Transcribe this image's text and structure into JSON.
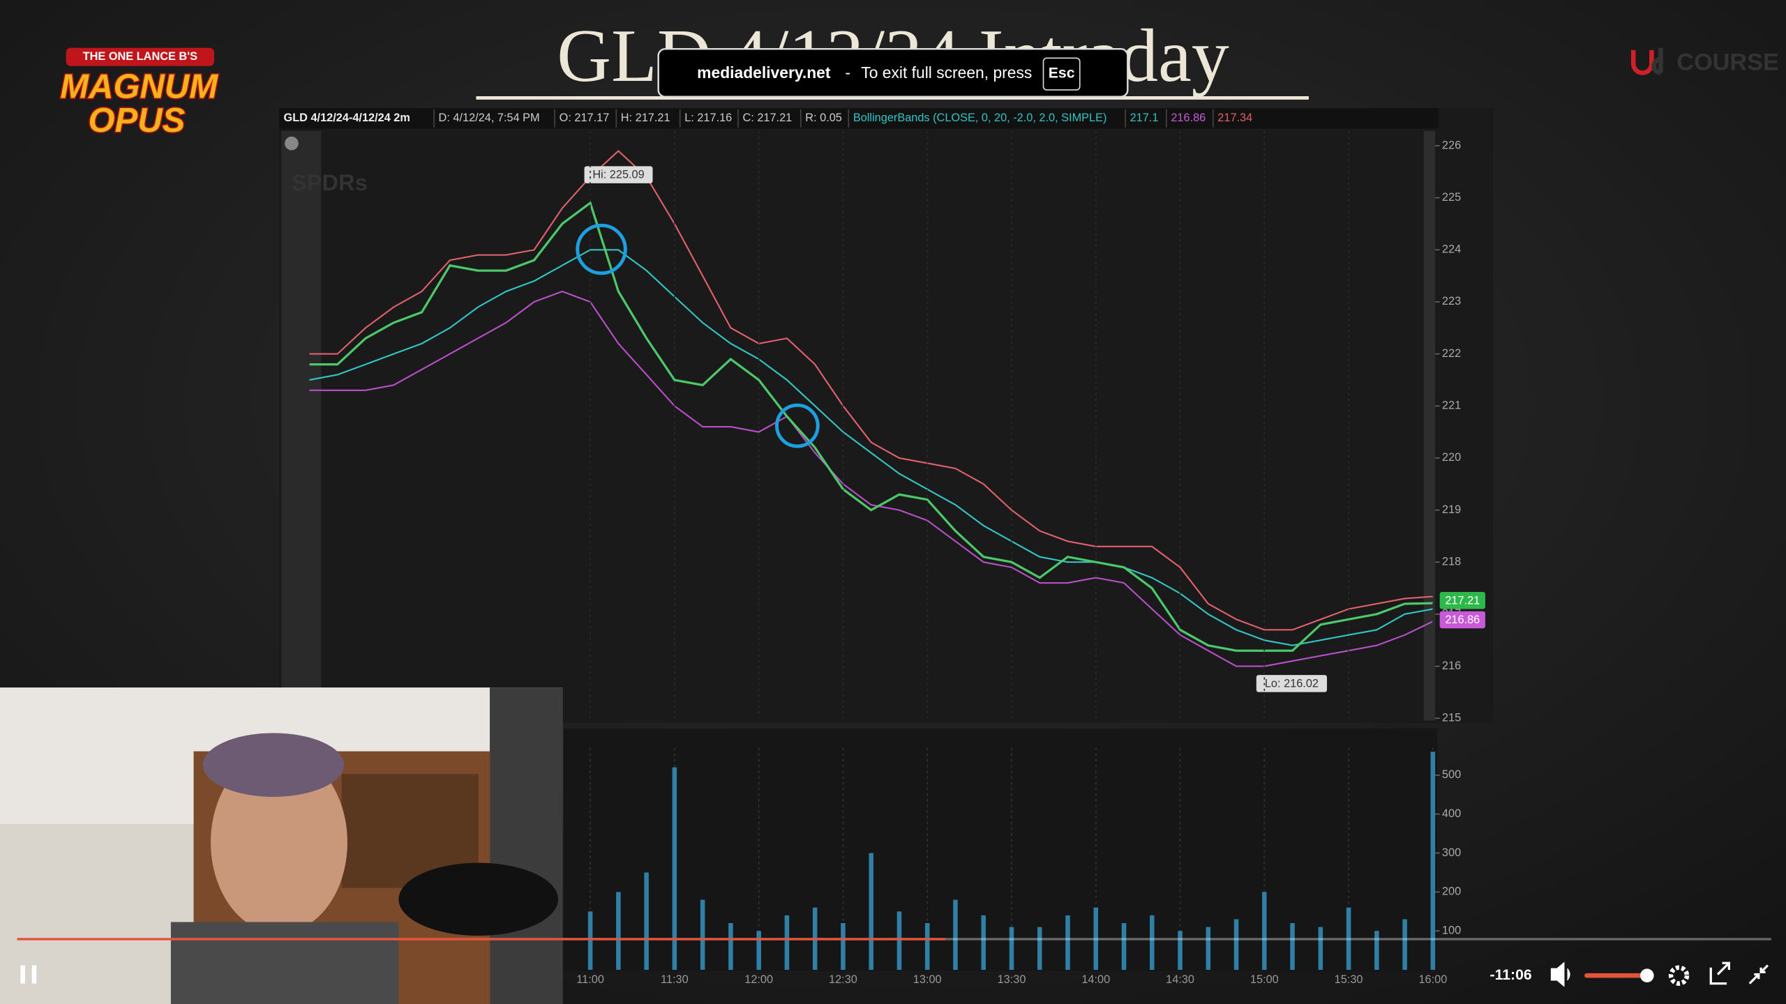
{
  "video": {
    "title": "GLD 4/12/24 Intraday",
    "logo_top": "THE ONE LANCE B'S",
    "logo_line1": "MAGNUM",
    "logo_line2": "OPUS",
    "brand": "COURSE",
    "time_remaining": "-11:06"
  },
  "fullscreen_notice": {
    "site": "mediadelivery.net",
    "separator": "-",
    "message": "To exit full screen, press",
    "key": "Esc"
  },
  "chart_header": [
    "GLD 4/12/24-4/12/24 2m",
    "D: 4/12/24, 7:54 PM",
    "O: 217.17",
    "H: 217.21",
    "L: 217.16",
    "C: 217.21",
    "R: 0.05",
    "BollingerBands (CLOSE, 0, 20, -2.0, 2.0, SIMPLE)",
    "217.1",
    "216.86",
    "217.34"
  ],
  "chart_data": [
    {
      "type": "line",
      "annotations": [
        "Hi: 225.09",
        "Lo: 216.02",
        "217.21",
        "216.86"
      ],
      "watermark": "SPDRs",
      "x": [
        560,
        570,
        580,
        590,
        600,
        610,
        620,
        630,
        640,
        650,
        660,
        670,
        680,
        690,
        700,
        710,
        720,
        730,
        740,
        750,
        760,
        770,
        780,
        790,
        800,
        810,
        820,
        830,
        840,
        850,
        860,
        870,
        880,
        890,
        900,
        910,
        920,
        930,
        940,
        950,
        960
      ],
      "xlim": [
        550,
        960
      ],
      "ylim": [
        215,
        226
      ],
      "yticks": [
        215,
        216,
        217,
        218,
        219,
        220,
        221,
        222,
        223,
        224,
        225,
        226
      ],
      "series": [
        {
          "color": "#e0606e",
          "values": [
            222.0,
            222.0,
            222.5,
            222.9,
            223.2,
            223.8,
            223.9,
            223.9,
            224.0,
            224.8,
            225.4,
            225.9,
            225.4,
            224.5,
            223.5,
            222.5,
            222.2,
            222.3,
            221.8,
            221.0,
            220.3,
            220.0,
            219.9,
            219.8,
            219.5,
            219.0,
            218.6,
            218.4,
            218.3,
            218.3,
            218.3,
            217.9,
            217.2,
            216.9,
            216.7,
            216.7,
            216.9,
            217.1,
            217.2,
            217.3,
            217.34
          ]
        },
        {
          "color": "#b84fc8",
          "values": [
            221.3,
            221.3,
            221.3,
            221.4,
            221.7,
            222.0,
            222.3,
            222.6,
            223.0,
            223.2,
            223.0,
            222.2,
            221.6,
            221.0,
            220.6,
            220.6,
            220.5,
            220.8,
            220.1,
            219.5,
            219.1,
            219.0,
            218.8,
            218.4,
            218.0,
            217.9,
            217.6,
            217.6,
            217.7,
            217.6,
            217.1,
            216.6,
            216.3,
            216.0,
            216.0,
            216.1,
            216.2,
            216.3,
            216.4,
            216.6,
            216.86
          ]
        },
        {
          "color": "#33c4c4",
          "values": [
            221.5,
            221.6,
            221.8,
            222.0,
            222.2,
            222.5,
            222.9,
            223.2,
            223.4,
            223.7,
            224.0,
            224.0,
            223.6,
            223.1,
            222.6,
            222.2,
            221.9,
            221.5,
            221.0,
            220.5,
            220.1,
            219.7,
            219.4,
            219.1,
            218.7,
            218.4,
            218.1,
            218.0,
            218.0,
            217.9,
            217.7,
            217.4,
            217.0,
            216.7,
            216.5,
            216.4,
            216.5,
            216.6,
            216.7,
            217.0,
            217.1
          ]
        },
        {
          "color": "#4cc76a",
          "values": [
            221.8,
            221.8,
            222.3,
            222.6,
            222.8,
            223.7,
            223.6,
            223.6,
            223.8,
            224.5,
            224.9,
            223.2,
            222.3,
            221.5,
            221.4,
            221.9,
            221.5,
            220.8,
            220.2,
            219.4,
            219.0,
            219.3,
            219.2,
            218.6,
            218.1,
            218.0,
            217.7,
            218.1,
            218.0,
            217.9,
            217.5,
            216.7,
            216.4,
            216.3,
            216.3,
            216.3,
            216.8,
            216.9,
            217.0,
            217.2,
            217.21
          ]
        }
      ]
    },
    {
      "type": "bar",
      "x": [
        660,
        670,
        680,
        690,
        700,
        710,
        720,
        730,
        740,
        750,
        760,
        770,
        780,
        790,
        800,
        810,
        820,
        830,
        840,
        850,
        860,
        870,
        880,
        890,
        900,
        910,
        920,
        930,
        940,
        950,
        960
      ],
      "values": [
        150,
        200,
        250,
        520,
        180,
        120,
        100,
        140,
        160,
        120,
        300,
        150,
        120,
        180,
        140,
        110,
        110,
        140,
        160,
        120,
        140,
        100,
        110,
        130,
        200,
        120,
        110,
        160,
        100,
        130,
        560
      ],
      "color": "#2f7fa6",
      "xlim": [
        550,
        960
      ],
      "ylim": [
        0,
        570
      ],
      "yticks": [
        100,
        200,
        300,
        400,
        500
      ],
      "xticks": [
        {
          "value": 660,
          "label": "11:00"
        },
        {
          "value": 690,
          "label": "11:30"
        },
        {
          "value": 720,
          "label": "12:00"
        },
        {
          "value": 750,
          "label": "12:30"
        },
        {
          "value": 780,
          "label": "13:00"
        },
        {
          "value": 810,
          "label": "13:30"
        },
        {
          "value": 840,
          "label": "14:00"
        },
        {
          "value": 870,
          "label": "14:30"
        },
        {
          "value": 900,
          "label": "15:00"
        },
        {
          "value": 930,
          "label": "15:30"
        },
        {
          "value": 960,
          "label": "16:00"
        }
      ]
    }
  ]
}
